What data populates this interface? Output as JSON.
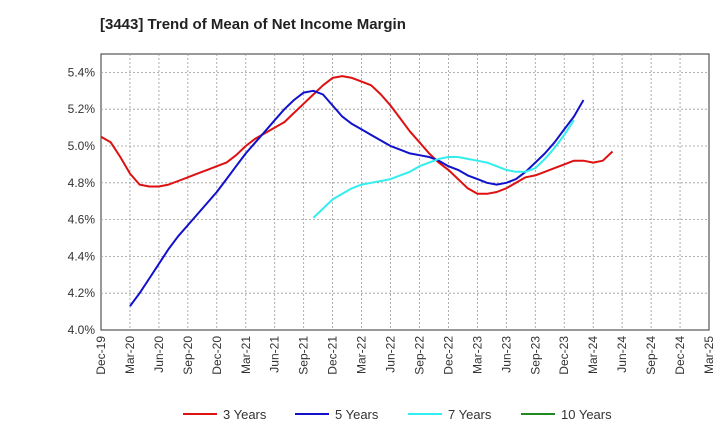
{
  "chart_data": {
    "type": "line",
    "title": "[3443]  Trend of Mean of Net Income Margin",
    "x_tick_labels": [
      "Dec-19",
      "Mar-20",
      "Jun-20",
      "Sep-20",
      "Dec-20",
      "Mar-21",
      "Jun-21",
      "Sep-21",
      "Dec-21",
      "Mar-22",
      "Jun-22",
      "Sep-22",
      "Dec-22",
      "Mar-23",
      "Jun-23",
      "Sep-23",
      "Dec-23",
      "Mar-24",
      "Jun-24",
      "Sep-24",
      "Dec-24",
      "Mar-25"
    ],
    "y_tick_labels": [
      "4.0%",
      "4.2%",
      "4.4%",
      "4.6%",
      "4.8%",
      "5.0%",
      "5.2%",
      "5.4%"
    ],
    "ylim": [
      4.0,
      5.5
    ],
    "grid": true,
    "legend_position": "bottom",
    "series": [
      {
        "name": "3 Years",
        "color": "#dd1111",
        "start_index": 0,
        "values": [
          5.05,
          5.02,
          4.94,
          4.85,
          4.79,
          4.78,
          4.78,
          4.79,
          4.81,
          4.83,
          4.85,
          4.87,
          4.89,
          4.91,
          4.95,
          5.0,
          5.04,
          5.07,
          5.1,
          5.13,
          5.18,
          5.23,
          5.28,
          5.33,
          5.37,
          5.38,
          5.37,
          5.35,
          5.33,
          5.28,
          5.22,
          5.15,
          5.08,
          5.02,
          4.96,
          4.91,
          4.87,
          4.82,
          4.77,
          4.74,
          4.74,
          4.75,
          4.77,
          4.8,
          4.83,
          4.84,
          4.86,
          4.88,
          4.9,
          4.92,
          4.92,
          4.91,
          4.92,
          4.97
        ]
      },
      {
        "name": "5 Years",
        "color": "#1111cc",
        "start_index": 3,
        "values": [
          4.13,
          4.2,
          4.28,
          4.36,
          4.44,
          4.51,
          4.57,
          4.63,
          4.69,
          4.75,
          4.82,
          4.89,
          4.96,
          5.02,
          5.08,
          5.14,
          5.2,
          5.25,
          5.29,
          5.3,
          5.28,
          5.22,
          5.16,
          5.12,
          5.09,
          5.06,
          5.03,
          5.0,
          4.98,
          4.96,
          4.95,
          4.94,
          4.92,
          4.89,
          4.87,
          4.84,
          4.82,
          4.8,
          4.79,
          4.8,
          4.82,
          4.86,
          4.91,
          4.96,
          5.02,
          5.09,
          5.16,
          5.25
        ]
      },
      {
        "name": "7 Years",
        "color": "#33eeee",
        "start_index": 22,
        "values": [
          4.61,
          4.66,
          4.71,
          4.74,
          4.77,
          4.79,
          4.8,
          4.81,
          4.82,
          4.84,
          4.86,
          4.89,
          4.91,
          4.93,
          4.94,
          4.94,
          4.93,
          4.92,
          4.91,
          4.89,
          4.87,
          4.86,
          4.86,
          4.88,
          4.93,
          4.99,
          5.06,
          5.14
        ]
      },
      {
        "name": "10 Years",
        "color": "#228822",
        "start_index": 0,
        "values": []
      }
    ]
  }
}
